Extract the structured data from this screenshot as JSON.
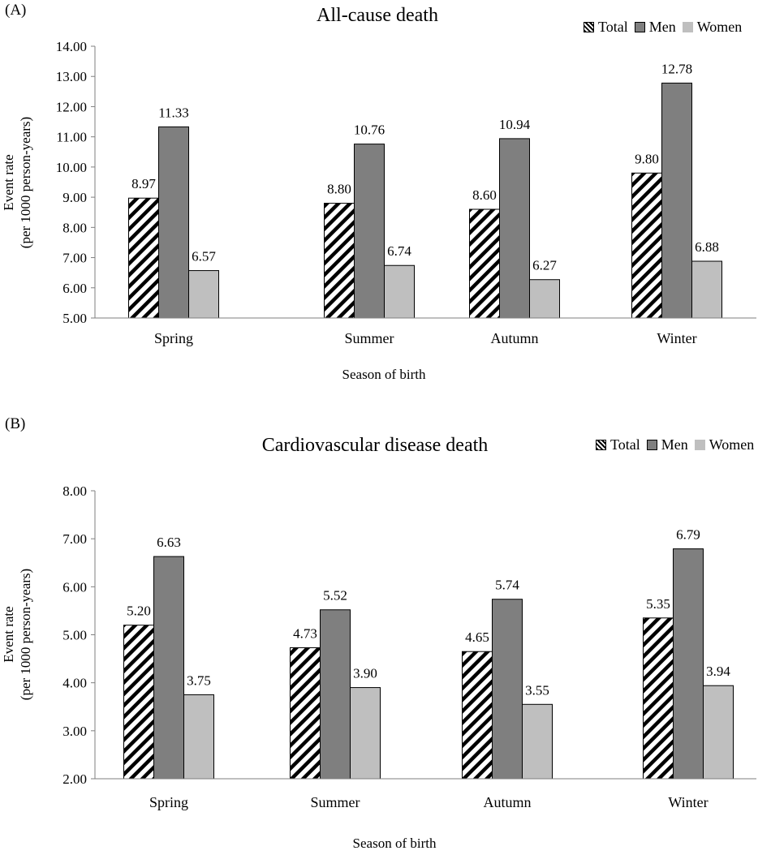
{
  "colors": {
    "total_hatch": "#000000",
    "men": "#7f7f7f",
    "women": "#bfbfbf",
    "axis": "#7f7f7f"
  },
  "chart_data": [
    {
      "panel_label": "(A)",
      "type": "bar",
      "title": "All-cause death",
      "xlabel": "Season of birth",
      "ylabel_line1": "Event rate",
      "ylabel_line2": "(per 1000 person-years)",
      "categories": [
        "Spring",
        "Summer",
        "Autumn",
        "Winter"
      ],
      "series": [
        {
          "name": "Total",
          "values": [
            8.97,
            8.8,
            8.6,
            9.8
          ],
          "labels": [
            "8.97",
            "8.80",
            "8.60",
            "9.80"
          ]
        },
        {
          "name": "Men",
          "values": [
            11.33,
            10.76,
            10.94,
            12.78
          ],
          "labels": [
            "11.33",
            "10.76",
            "10.94",
            "12.78"
          ]
        },
        {
          "name": "Women",
          "values": [
            6.57,
            6.74,
            6.27,
            6.88
          ],
          "labels": [
            "6.57",
            "6.74",
            "6.27",
            "6.88"
          ]
        }
      ],
      "ylim": [
        5,
        14
      ],
      "yticks": [
        "5.00",
        "6.00",
        "7.00",
        "8.00",
        "9.00",
        "10.00",
        "11.00",
        "12.00",
        "13.00",
        "14.00"
      ],
      "legend_position": "top-right",
      "grid": false
    },
    {
      "panel_label": "(B)",
      "type": "bar",
      "title": "Cardiovascular disease death",
      "xlabel": "Season of birth",
      "ylabel_line1": "Event rate",
      "ylabel_line2": "(per 1000 person-years)",
      "categories": [
        "Spring",
        "Summer",
        "Autumn",
        "Winter"
      ],
      "series": [
        {
          "name": "Total",
          "values": [
            5.2,
            4.73,
            4.65,
            5.35
          ],
          "labels": [
            "5.20",
            "4.73",
            "4.65",
            "5.35"
          ]
        },
        {
          "name": "Men",
          "values": [
            6.63,
            5.52,
            5.74,
            6.79
          ],
          "labels": [
            "6.63",
            "5.52",
            "5.74",
            "6.79"
          ]
        },
        {
          "name": "Women",
          "values": [
            3.75,
            3.9,
            3.55,
            3.94
          ],
          "labels": [
            "3.75",
            "3.90",
            "3.55",
            "3.94"
          ]
        }
      ],
      "ylim": [
        2,
        8
      ],
      "yticks": [
        "2.00",
        "3.00",
        "4.00",
        "5.00",
        "6.00",
        "7.00",
        "8.00"
      ],
      "legend_position": "top-right",
      "grid": false
    }
  ]
}
